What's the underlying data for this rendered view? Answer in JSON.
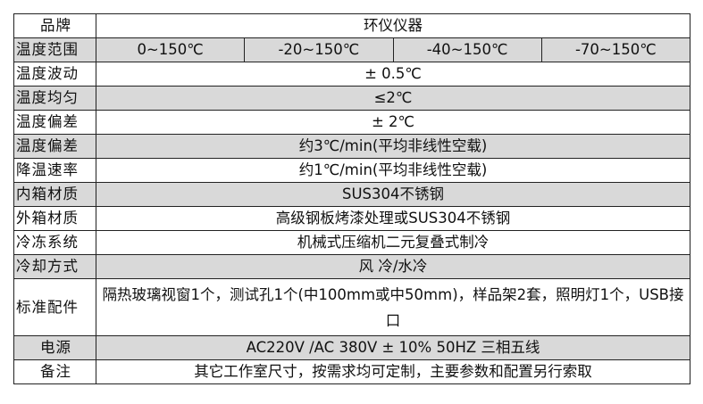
{
  "rows_background": "#d9d9d9",
  "brand": {
    "label": "品牌",
    "value": "环仪仪器"
  },
  "temp_range": {
    "label": "温度范围",
    "values": [
      "0~150℃",
      "-20~150℃",
      "-40~150℃",
      "-70~150℃"
    ]
  },
  "rows": [
    {
      "label": "温度波动",
      "value": "± 0.5℃"
    },
    {
      "label": "温度均匀",
      "value": "≤2℃"
    },
    {
      "label": "温度偏差",
      "value": "± 2℃"
    },
    {
      "label": "温度偏差",
      "value": "约3℃/min(平均非线性空载)"
    },
    {
      "label": "降温速率",
      "value": "约1℃/min(平均非线性空载)"
    },
    {
      "label": "内箱材质",
      "value": "SUS304不锈钢"
    },
    {
      "label": "外箱材质",
      "value": "高级钢板烤漆处理或SUS304不锈钢"
    },
    {
      "label": "冷冻系统",
      "value": "机械式压缩机二元复叠式制冷"
    },
    {
      "label": "冷却方式",
      "value": "风 冷/水冷"
    },
    {
      "label": "标准配件",
      "value": "隔热玻璃视窗1个，测试孔1个(中100mm或中50mm)，样品架2套，照明灯1个，USB接口"
    },
    {
      "label": "电源",
      "value": "AC220V /AC 380V ± 10% 50HZ 三相五线"
    },
    {
      "label": "备注",
      "value": "其它工作室尺寸，按需求均可定制，主要参数和配置另行索取"
    }
  ]
}
